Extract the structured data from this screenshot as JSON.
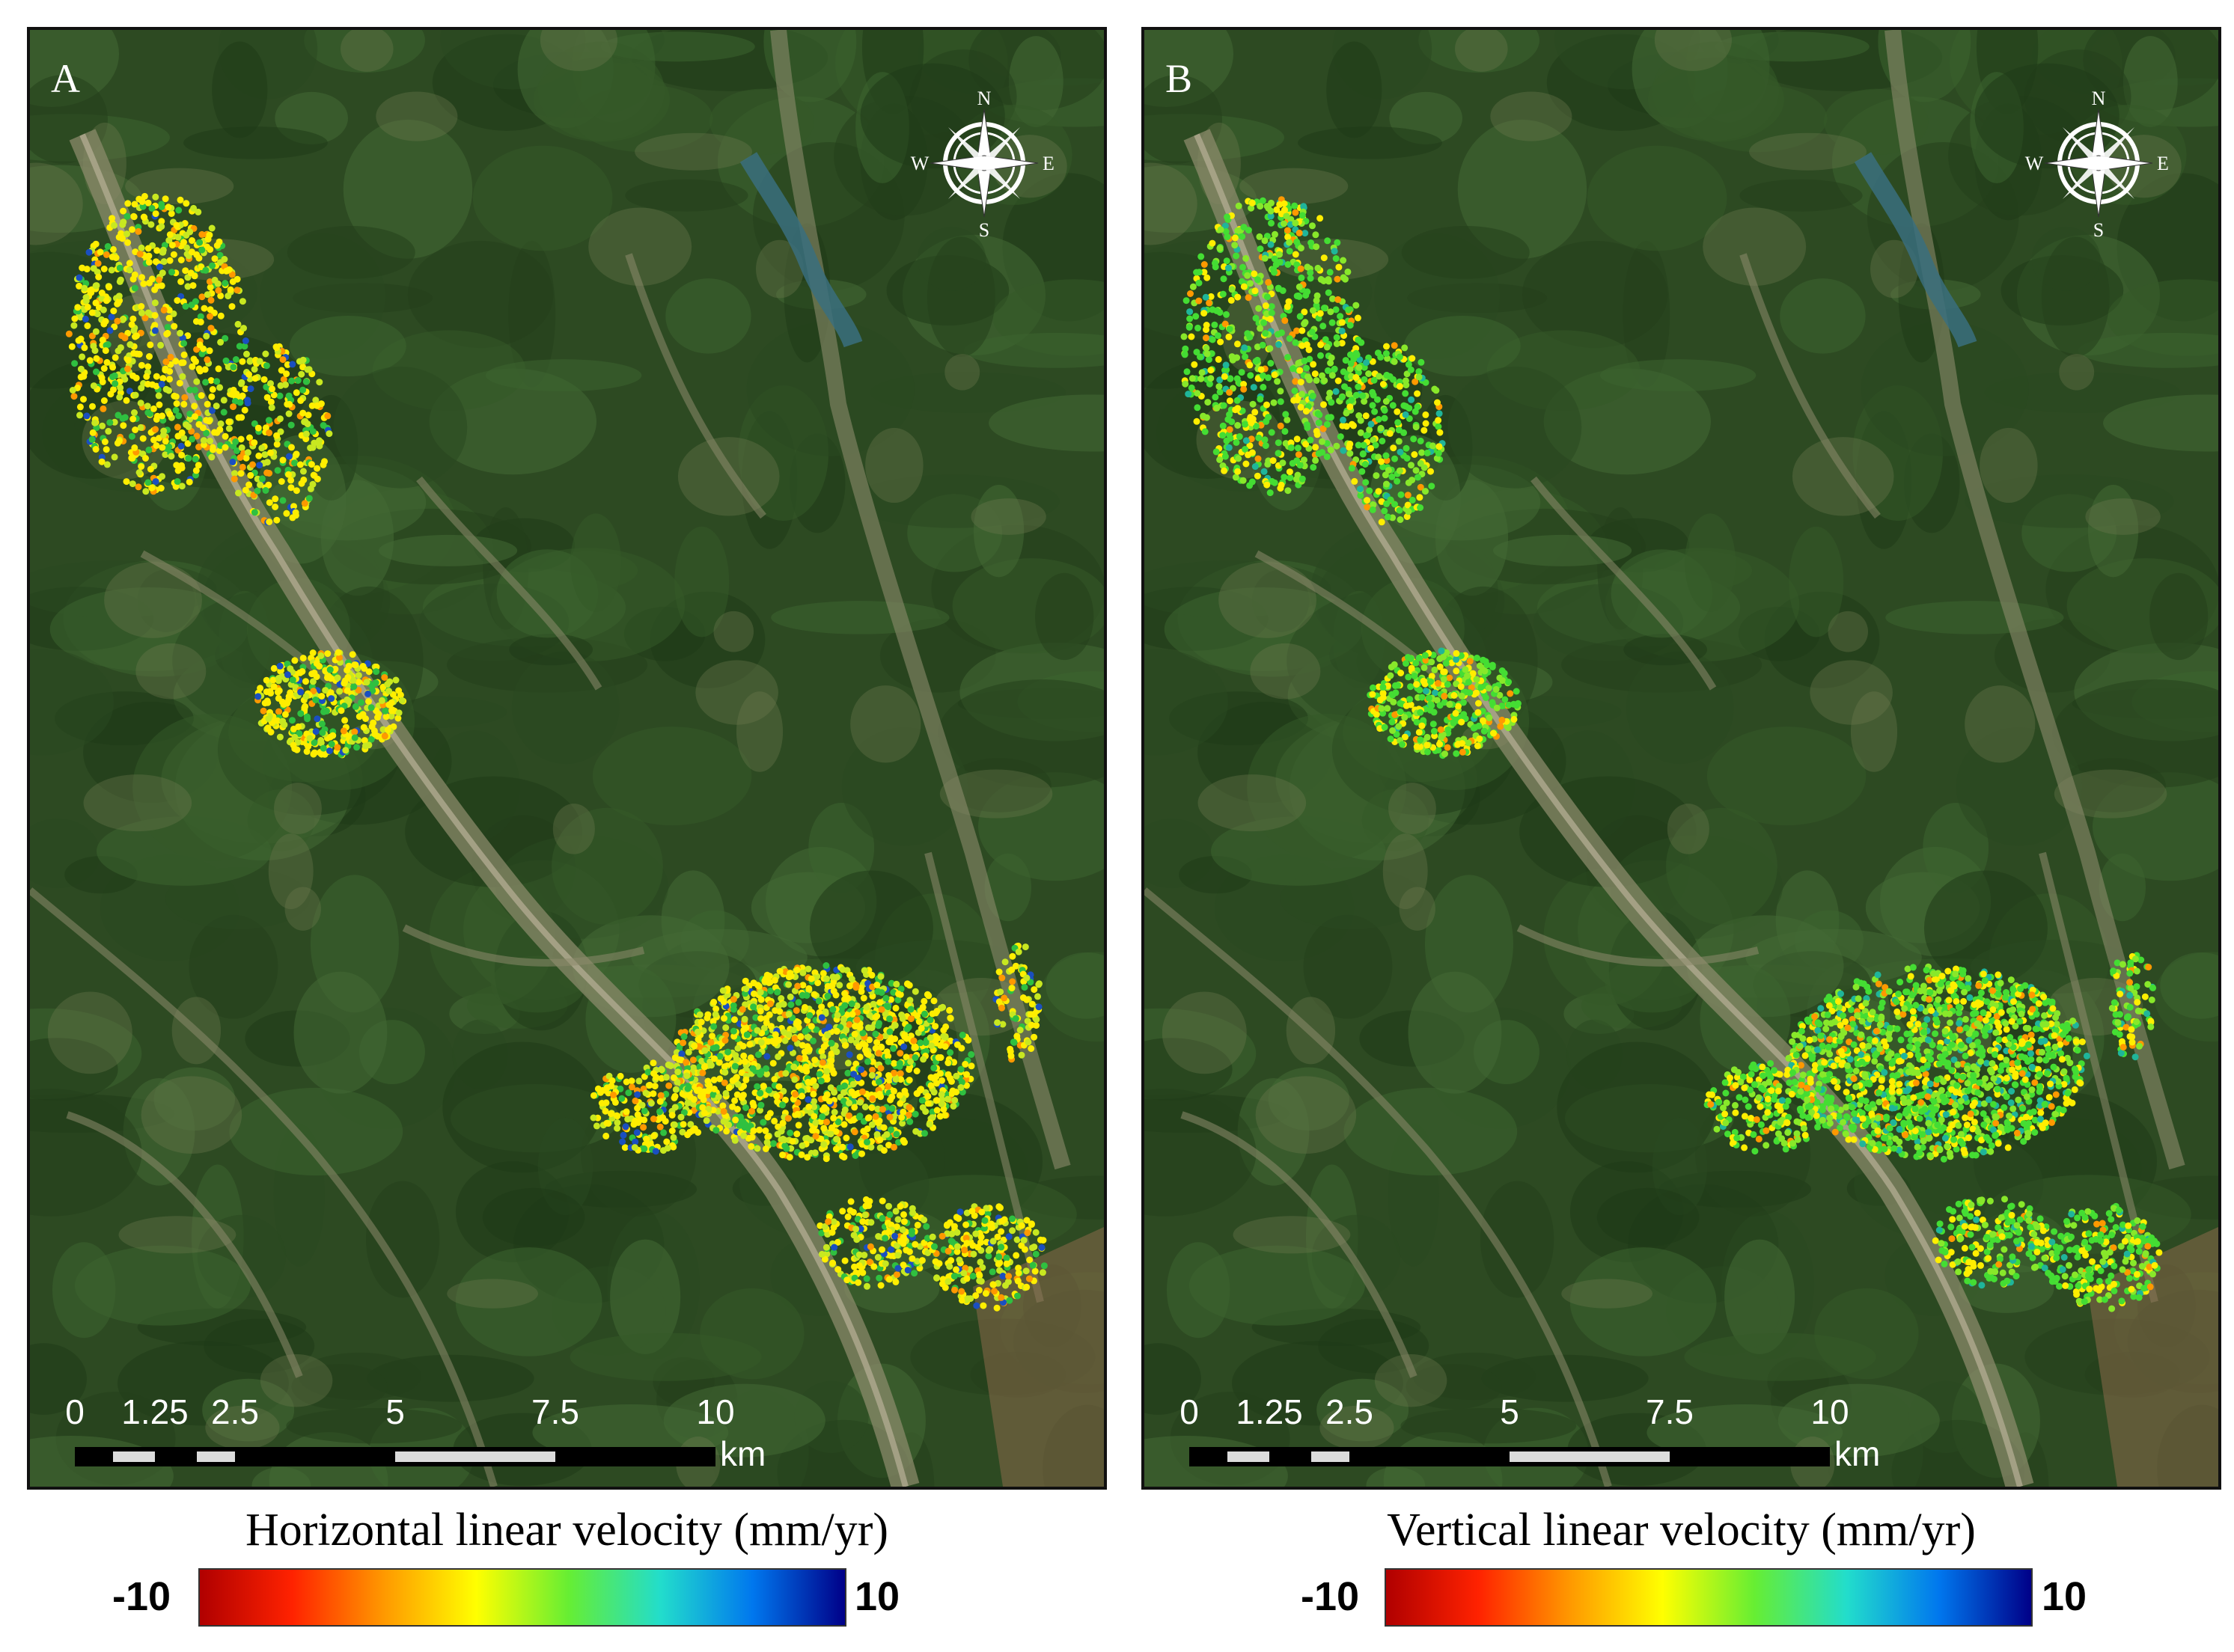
{
  "panels": [
    {
      "letter": "A",
      "legend_title": "Horizontal linear velocity (mm/yr)",
      "scale_min": "-10",
      "scale_max": "10",
      "colormap": [
        "#b00000",
        "#ff2200",
        "#ff9900",
        "#ffff00",
        "#66ee33",
        "#22ddcc",
        "#0077ee",
        "#000088"
      ],
      "dominant_colors": [
        "#ffee00",
        "#c8e820",
        "#ff9900",
        "#2fc040",
        "#1a4fc0"
      ]
    },
    {
      "letter": "B",
      "legend_title": "Vertical linear velocity (mm/yr)",
      "scale_min": "-10",
      "scale_max": "10",
      "colormap": [
        "#b00000",
        "#ff2200",
        "#ff9900",
        "#ffff00",
        "#66ee33",
        "#22ddcc",
        "#0077ee",
        "#000088"
      ],
      "dominant_colors": [
        "#44dd33",
        "#88e82a",
        "#ffee00",
        "#ff9900",
        "#1fb59a"
      ]
    }
  ],
  "compass": {
    "n": "N",
    "s": "S",
    "e": "E",
    "w": "W",
    "icon": "compass-rose-icon"
  },
  "scalebar": {
    "ticks": [
      "0",
      "1.25",
      "2.5",
      "5",
      "7.5",
      "10"
    ],
    "tick_values": [
      0,
      1.25,
      2.5,
      5,
      7.5,
      10
    ],
    "unit": "km"
  },
  "colors": {
    "basemap_forest": "#2d4a22",
    "river": "#3a6e7e",
    "valley": "#8a8a6a",
    "frame": "#111111"
  }
}
